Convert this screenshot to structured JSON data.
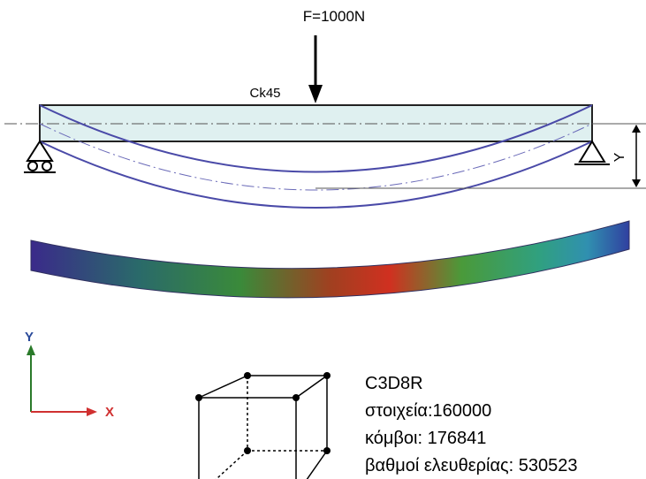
{
  "force_label": "F=1000N",
  "material_label": "Ck45",
  "deflection_label": "Y",
  "axes": {
    "y_label": "Y",
    "x_label": "X"
  },
  "element_info": {
    "element_type": "C3D8R",
    "elements": "στοιχεία:160000",
    "nodes": "κόμβοι: 176841",
    "dof": "βαθμοί ελευθερίας: 530523"
  }
}
